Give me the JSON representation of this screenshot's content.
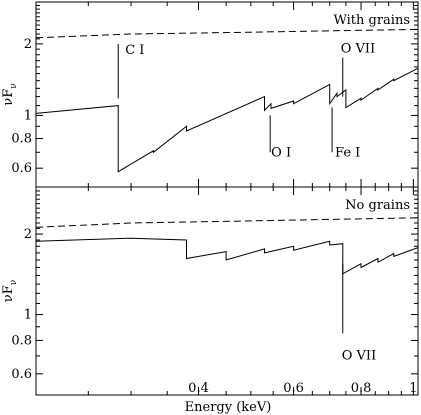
{
  "chart_data": [
    {
      "type": "line",
      "panel": "top",
      "label": "With grains",
      "xlabel": "Energy (keV)",
      "ylabel": "νF",
      "ylabel_sub": "ν",
      "x_scale": "log",
      "y_scale": "log",
      "xlim": [
        0.2,
        1.02
      ],
      "ylim": [
        0.5,
        3.0
      ],
      "x_ticks": [
        {
          "value": 0.4,
          "label": "0.4"
        },
        {
          "value": 0.6,
          "label": "0.6"
        },
        {
          "value": 0.8,
          "label": "0.8"
        },
        {
          "value": 1.0,
          "label": "1"
        }
      ],
      "y_ticks": [
        {
          "value": 0.6,
          "label": "0.6"
        },
        {
          "value": 0.8,
          "label": "0.8"
        },
        {
          "value": 1.0,
          "label": "1"
        },
        {
          "value": 2.0,
          "label": "2"
        }
      ],
      "series": [
        {
          "style": "solid",
          "x": [
            0.2,
            0.284,
            0.284,
            0.33,
            0.33,
            0.38,
            0.38,
            0.53,
            0.53,
            0.545,
            0.545,
            0.6,
            0.6,
            0.7,
            0.7,
            0.722,
            0.722,
            0.75,
            0.75,
            0.8,
            0.8,
            0.86,
            0.86,
            0.92,
            0.92,
            1.02
          ],
          "y": [
            1.02,
            1.1,
            0.58,
            0.71,
            0.7,
            0.9,
            0.86,
            1.2,
            1.05,
            1.12,
            1.07,
            1.15,
            1.12,
            1.35,
            1.12,
            1.24,
            1.2,
            1.28,
            1.08,
            1.18,
            1.16,
            1.3,
            1.28,
            1.42,
            1.4,
            1.58
          ]
        },
        {
          "style": "dashed",
          "x": [
            0.2,
            0.3,
            0.5,
            0.7,
            1.02
          ],
          "y": [
            2.12,
            2.2,
            2.24,
            2.27,
            2.3
          ]
        }
      ],
      "lines": [
        {
          "label": "C I",
          "x": 0.284,
          "y_from": 1.18,
          "y_to": 2.0,
          "label_pos": "right-top"
        },
        {
          "label": "O I",
          "x": 0.543,
          "y_from": 0.7,
          "y_to": 1.0,
          "label_pos": "below"
        },
        {
          "label": "Fe I",
          "x": 0.707,
          "y_from": 0.7,
          "y_to": 1.08,
          "label_pos": "right-bottom"
        },
        {
          "label": "O VII",
          "x": 0.74,
          "y_from": 1.2,
          "y_to": 1.75,
          "label_pos": "above"
        }
      ]
    },
    {
      "type": "line",
      "panel": "bottom",
      "label": "No grains",
      "xlabel": "Energy (keV)",
      "ylabel": "νF",
      "ylabel_sub": "ν",
      "x_scale": "log",
      "y_scale": "log",
      "xlim": [
        0.2,
        1.02
      ],
      "ylim": [
        0.5,
        3.0
      ],
      "x_ticks": [
        {
          "value": 0.4,
          "label": "0.4"
        },
        {
          "value": 0.6,
          "label": "0.6"
        },
        {
          "value": 0.8,
          "label": "0.8"
        },
        {
          "value": 1.0,
          "label": "1"
        }
      ],
      "y_ticks": [
        {
          "value": 0.6,
          "label": "0.6"
        },
        {
          "value": 0.8,
          "label": "0.8"
        },
        {
          "value": 1.0,
          "label": "1"
        },
        {
          "value": 2.0,
          "label": "2"
        }
      ],
      "series": [
        {
          "style": "solid",
          "x": [
            0.2,
            0.3,
            0.38,
            0.38,
            0.45,
            0.45,
            0.53,
            0.53,
            0.6,
            0.6,
            0.7,
            0.7,
            0.74,
            0.74,
            0.8,
            0.8,
            0.86,
            0.86,
            0.92,
            0.92,
            1.02
          ],
          "y": [
            1.88,
            1.93,
            1.9,
            1.62,
            1.72,
            1.6,
            1.76,
            1.7,
            1.8,
            1.74,
            1.88,
            1.82,
            1.84,
            1.42,
            1.55,
            1.5,
            1.62,
            1.57,
            1.69,
            1.65,
            1.78
          ]
        },
        {
          "style": "dashed",
          "x": [
            0.2,
            0.3,
            0.5,
            0.7,
            1.02
          ],
          "y": [
            2.12,
            2.2,
            2.24,
            2.27,
            2.3
          ]
        }
      ],
      "lines": [
        {
          "label": "O VII",
          "x": 0.74,
          "y_from": 0.85,
          "y_to": 1.55,
          "label_pos": "below"
        }
      ]
    }
  ]
}
